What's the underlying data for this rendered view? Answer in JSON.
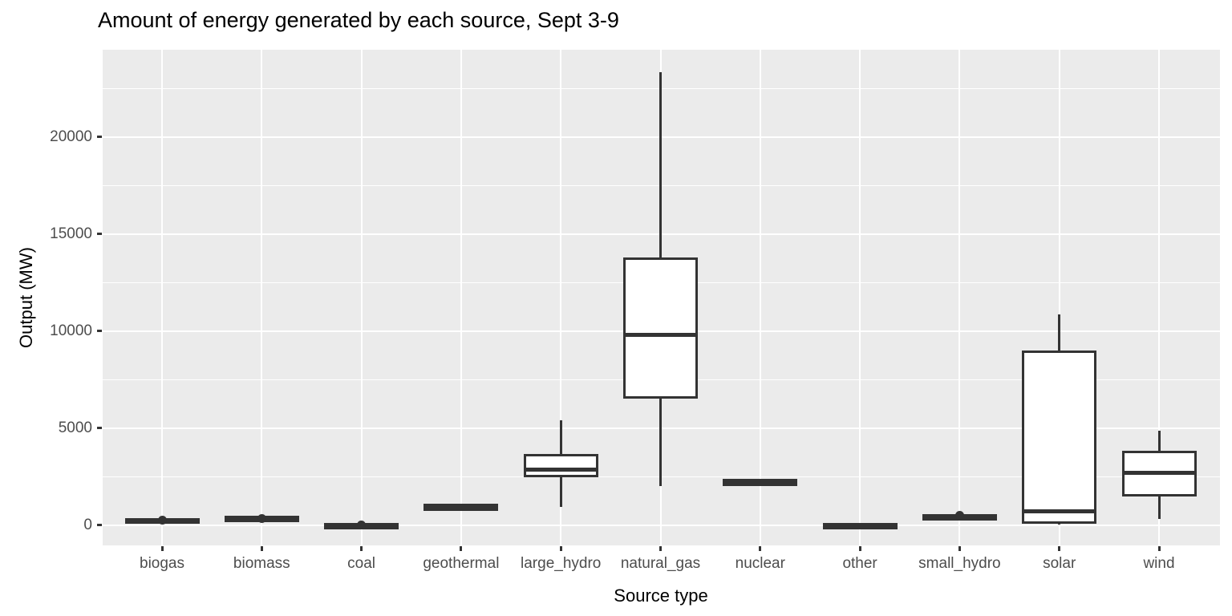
{
  "title": "Amount of energy generated by each source, Sept 3-9",
  "colors": {
    "panel_background": "#EBEBEB",
    "gridline": "#FFFFFF",
    "box_stroke": "#333333",
    "box_fill": "#FFFFFF",
    "tick_label": "#4D4D4D",
    "title_text": "#000000"
  },
  "chart_data": {
    "type": "boxplot",
    "title": "Amount of energy generated by each source, Sept 3-9",
    "xlabel": "Source type",
    "ylabel": "Output (MW)",
    "ylim": [
      -1050,
      24500
    ],
    "y_major_ticks": [
      0,
      5000,
      10000,
      15000,
      20000
    ],
    "y_minor_gridlines": [
      2500,
      7500,
      12500,
      17500,
      22500
    ],
    "grid": "white major and minor horizontal gridlines plus vertical category gridlines on grey panel",
    "legend": "none",
    "categories": [
      "biogas",
      "biomass",
      "coal",
      "geothermal",
      "large_hydro",
      "natural_gas",
      "nuclear",
      "other",
      "small_hydro",
      "solar",
      "wind"
    ],
    "series": [
      {
        "name": "biogas",
        "min": 220,
        "q1": 250,
        "median": 270,
        "q3": 295,
        "max": 320,
        "outliers": [
          255
        ]
      },
      {
        "name": "biomass",
        "min": 330,
        "q1": 355,
        "median": 375,
        "q3": 400,
        "max": 430,
        "outliers": [
          340
        ]
      },
      {
        "name": "coal",
        "min": -25,
        "q1": -5,
        "median": 10,
        "q3": 25,
        "max": 45,
        "outliers": [
          10
        ]
      },
      {
        "name": "geothermal",
        "min": 950,
        "q1": 965,
        "median": 980,
        "q3": 995,
        "max": 1010,
        "outliers": []
      },
      {
        "name": "large_hydro",
        "min": 950,
        "q1": 2470,
        "median": 2870,
        "q3": 3650,
        "max": 5400,
        "outliers": []
      },
      {
        "name": "natural_gas",
        "min": 2000,
        "q1": 6500,
        "median": 9800,
        "q3": 13800,
        "max": 23350,
        "outliers": []
      },
      {
        "name": "nuclear",
        "min": 2240,
        "q1": 2250,
        "median": 2260,
        "q3": 2275,
        "max": 2285,
        "outliers": []
      },
      {
        "name": "other",
        "min": -40,
        "q1": -15,
        "median": 0,
        "q3": 15,
        "max": 30,
        "outliers": []
      },
      {
        "name": "small_hydro",
        "min": 440,
        "q1": 455,
        "median": 470,
        "q3": 490,
        "max": 510,
        "outliers": [
          520
        ]
      },
      {
        "name": "solar",
        "min": 20,
        "q1": 80,
        "median": 690,
        "q3": 9000,
        "max": 10850,
        "outliers": []
      },
      {
        "name": "wind",
        "min": 330,
        "q1": 1460,
        "median": 2700,
        "q3": 3830,
        "max": 4850,
        "outliers": []
      }
    ]
  }
}
